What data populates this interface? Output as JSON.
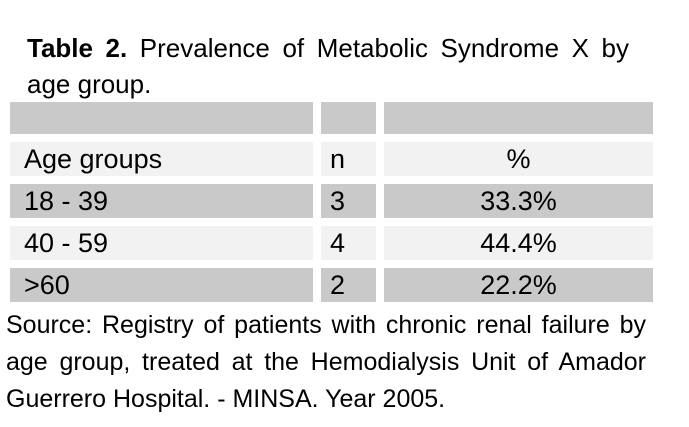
{
  "title": {
    "bold": "Table 2.",
    "rest": " Prevalence of Metabolic Syndrome X by age group."
  },
  "table": {
    "columns": [
      "Age groups",
      "n",
      "%"
    ],
    "rows": [
      [
        "18 - 39",
        "3",
        "33.3%"
      ],
      [
        "40 - 59",
        "4",
        "44.4%"
      ],
      [
        ">60",
        "2",
        "22.2%"
      ]
    ]
  },
  "source_note": "Source: Registry of patients with chronic renal failure by age group, treated at the Hemodialysis Unit of Amador Guerrero Hospital. - MINSA. Year 2005.",
  "colors": {
    "row_dark": "#c9c9c9",
    "row_light": "#f2f2f2",
    "background": "#ffffff",
    "text": "#000000"
  },
  "chart_data": {
    "type": "table",
    "title": "Table 2. Prevalence of Metabolic Syndrome X by age group.",
    "columns": [
      "Age groups",
      "n",
      "%"
    ],
    "categories": [
      "18 - 39",
      "40 - 59",
      ">60"
    ],
    "series": [
      {
        "name": "n",
        "values": [
          3,
          4,
          2
        ]
      },
      {
        "name": "%",
        "values": [
          33.3,
          44.4,
          22.2
        ]
      }
    ],
    "source": "Source: Registry of patients with chronic renal failure by age group, treated at the Hemodialysis Unit of Amador Guerrero Hospital. - MINSA. Year 2005."
  }
}
